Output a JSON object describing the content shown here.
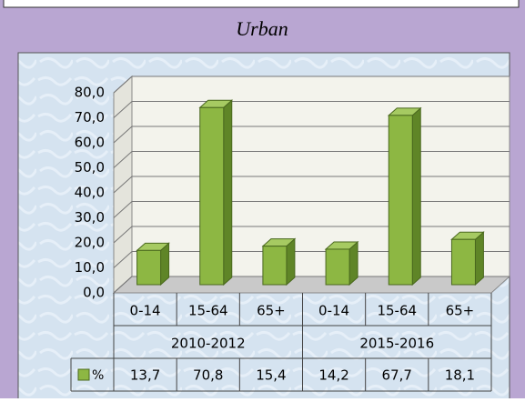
{
  "chart_data": {
    "type": "bar3d",
    "title": "Urban",
    "groups": [
      "2010-2012",
      "2015-2016"
    ],
    "categories": [
      "0-14",
      "15-64",
      "65+",
      "0-14",
      "15-64",
      "65+"
    ],
    "series": [
      {
        "name": "%",
        "color": "#8db743",
        "values": [
          13.7,
          70.8,
          15.4,
          14.2,
          67.7,
          18.1
        ],
        "value_labels": [
          "13,7",
          "70,8",
          "15,4",
          "14,2",
          "67,7",
          "18,1"
        ]
      }
    ],
    "ylim": [
      0,
      80
    ],
    "yticks": [
      {
        "value": 0,
        "label": "0,0"
      },
      {
        "value": 10,
        "label": "10,0"
      },
      {
        "value": 20,
        "label": "20,0"
      },
      {
        "value": 30,
        "label": "30,0"
      },
      {
        "value": 40,
        "label": "40,0"
      },
      {
        "value": 50,
        "label": "50,0"
      },
      {
        "value": 60,
        "label": "60,0"
      },
      {
        "value": 70,
        "label": "70,0"
      },
      {
        "value": 80,
        "label": "80,0"
      }
    ],
    "grid": true
  }
}
